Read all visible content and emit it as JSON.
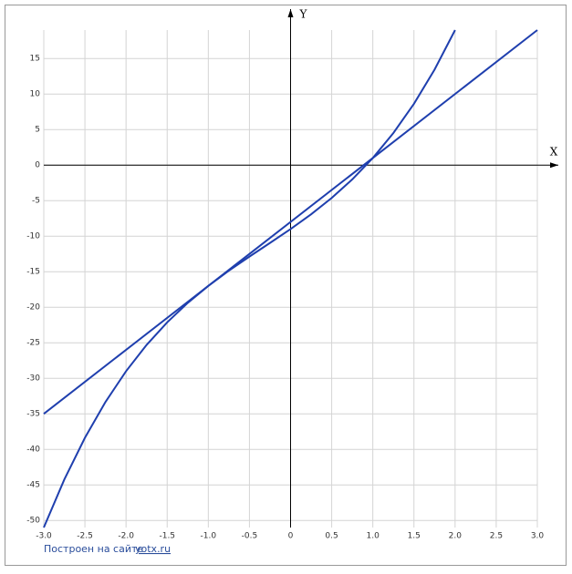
{
  "chart_data": {
    "type": "line",
    "x_axis_label": "X",
    "y_axis_label": "Y",
    "xlim": [
      -3,
      3
    ],
    "ylim": [
      -51,
      19
    ],
    "xticks": [
      {
        "value": -3,
        "label": "-3.0"
      },
      -2.5,
      {
        "value": -2,
        "label": "-2.0"
      },
      -1.5,
      {
        "value": -1,
        "label": "-1.0"
      },
      -0.5,
      0,
      0.5,
      {
        "value": 1,
        "label": "1.0"
      },
      1.5,
      {
        "value": 2,
        "label": "2.0"
      },
      2.5,
      {
        "value": 3,
        "label": "3.0"
      }
    ],
    "yticks": [
      -50,
      -45,
      -40,
      -35,
      -30,
      -25,
      -20,
      -15,
      -10,
      -5,
      0,
      5,
      10,
      15
    ],
    "grid": true,
    "series": [
      {
        "color": "#1f3fae",
        "x": [
          -3,
          -2.75,
          -2.5,
          -2.25,
          -2,
          -1.75,
          -1.5,
          -1.25,
          -1,
          -0.75,
          -0.5,
          -0.25,
          0,
          0.25,
          0.5,
          0.75,
          1,
          1.25,
          1.5,
          1.75,
          2
        ],
        "values": [
          -51,
          -44.234375,
          -38.375,
          -33.328125,
          -29,
          -25.296875,
          -22.125,
          -19.390625,
          -17,
          -14.859375,
          -12.875,
          -10.953125,
          -9,
          -6.921875,
          -4.625,
          -2.015625,
          1,
          4.515625,
          8.625,
          13.421875,
          19
        ]
      },
      {
        "color": "#1f3fae",
        "x": [
          -3,
          3
        ],
        "values": [
          -35,
          19
        ]
      }
    ]
  },
  "credit": {
    "text": "Построен на сайте",
    "link": "yotx.ru"
  }
}
